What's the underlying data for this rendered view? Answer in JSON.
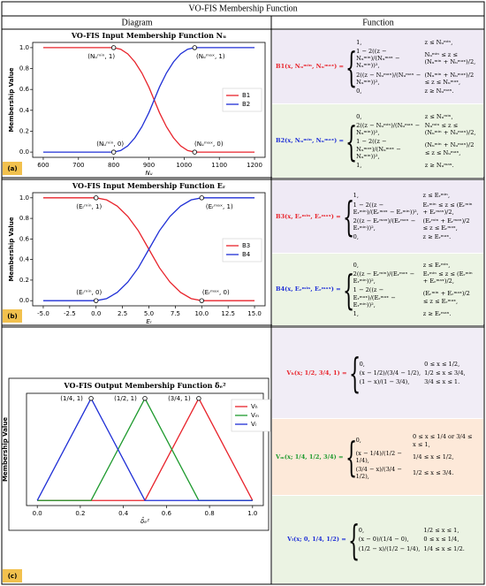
{
  "title": "VO-FIS Membership Function",
  "headers": [
    "Diagram",
    "Function"
  ],
  "panels": [
    "(a)",
    "(b)",
    "(c)"
  ],
  "chart_data": [
    {
      "type": "line",
      "title": "VO-FIS Input Membership Function Nᵤ",
      "xlabel": "Nᵤ",
      "ylabel": "Membership Value",
      "x": [
        600,
        800,
        820,
        840,
        860,
        880,
        900,
        915,
        930,
        950,
        970,
        990,
        1010,
        1030,
        1200
      ],
      "series": [
        {
          "name": "B1",
          "color": "#e8232b",
          "values": [
            1,
            1,
            0.985,
            0.94,
            0.864,
            0.758,
            0.622,
            0.5,
            0.378,
            0.242,
            0.136,
            0.06,
            0.015,
            0,
            0
          ]
        },
        {
          "name": "B2",
          "color": "#1f2fd6",
          "values": [
            0,
            0,
            0.015,
            0.06,
            0.136,
            0.242,
            0.378,
            0.5,
            0.622,
            0.758,
            0.864,
            0.94,
            0.985,
            1,
            1
          ]
        }
      ],
      "xlim": [
        570,
        1230
      ],
      "ylim": [
        -0.05,
        1.05
      ],
      "xticks": [
        600,
        700,
        800,
        900,
        1000,
        1100,
        1200
      ],
      "yticks": [
        {
          "value": 0,
          "label": "0.0"
        },
        0.2,
        0.4,
        0.6,
        0.8,
        {
          "value": 1,
          "label": "1.0"
        }
      ],
      "annotations": [
        {
          "text": "(Nᵤᵐⁱⁿ, 1)",
          "x": 800,
          "y": 1
        },
        {
          "text": "(Nᵤᵐᵃˣ, 1)",
          "x": 1030,
          "y": 1
        },
        {
          "text": "(Nᵤᵐⁱⁿ, 0)",
          "x": 800,
          "y": 0
        },
        {
          "text": "(Nᵤᵐᵃˣ, 0)",
          "x": 1030,
          "y": 0
        }
      ],
      "legend": "center right",
      "grid": false
    },
    {
      "type": "line",
      "title": "VO-FIS Input Membership Function Eᵣ",
      "xlabel": "Eᵣ",
      "ylabel": "Membership Value",
      "x": [
        -5,
        0,
        1,
        2,
        3,
        4,
        5,
        6,
        7,
        8,
        9,
        10,
        15
      ],
      "series": [
        {
          "name": "B3",
          "color": "#e8232b",
          "values": [
            1,
            1,
            0.98,
            0.92,
            0.82,
            0.68,
            0.5,
            0.32,
            0.18,
            0.08,
            0.02,
            0,
            0
          ]
        },
        {
          "name": "B4",
          "color": "#1f2fd6",
          "values": [
            0,
            0,
            0.02,
            0.08,
            0.18,
            0.32,
            0.5,
            0.68,
            0.82,
            0.92,
            0.98,
            1,
            1
          ]
        }
      ],
      "xlim": [
        -6,
        16
      ],
      "ylim": [
        -0.05,
        1.05
      ],
      "xticks": [
        {
          "value": -5,
          "label": "-5.0"
        },
        -2.5,
        {
          "value": 0,
          "label": "0.0"
        },
        2.5,
        {
          "value": 5,
          "label": "5.0"
        },
        7.5,
        {
          "value": 10,
          "label": "10.0"
        },
        12.5,
        {
          "value": 15,
          "label": "15.0"
        }
      ],
      "yticks": [
        {
          "value": 0,
          "label": "0.0"
        },
        0.2,
        0.4,
        0.6,
        0.8,
        {
          "value": 1,
          "label": "1.0"
        }
      ],
      "annotations": [
        {
          "text": "(Eᵣᵐⁱⁿ, 1)",
          "x": 0,
          "y": 1
        },
        {
          "text": "(Eᵣᵐᵃˣ, 1)",
          "x": 10,
          "y": 1
        },
        {
          "text": "(Eᵣᵐⁱⁿ, 0)",
          "x": 0,
          "y": 0
        },
        {
          "text": "(Eᵣᵐᵃˣ, 0)",
          "x": 10,
          "y": 0
        }
      ],
      "legend": "center right",
      "grid": false
    },
    {
      "type": "line",
      "title": "VO-FIS Output Membership Function δ̂ₑ²",
      "xlabel": "δ̂ₑ²",
      "ylabel": "Membership Value",
      "x": [
        0,
        0.25,
        0.5,
        0.75,
        1
      ],
      "series": [
        {
          "name": "Vₕ",
          "color": "#e8232b",
          "values": [
            0,
            0,
            0,
            1,
            0
          ]
        },
        {
          "name": "Vₘ",
          "color": "#1e9a2e",
          "values": [
            0,
            0,
            1,
            0,
            0
          ]
        },
        {
          "name": "Vₗ",
          "color": "#1f2fd6",
          "values": [
            0,
            1,
            0,
            0,
            0
          ]
        }
      ],
      "xlim": [
        -0.05,
        1.05
      ],
      "ylim": [
        -0.05,
        1.05
      ],
      "xticks": [
        {
          "value": 0,
          "label": "0.0"
        },
        0.2,
        0.4,
        0.6,
        0.8,
        {
          "value": 1,
          "label": "1.0"
        }
      ],
      "annotations": [
        {
          "text": "(1/4, 1)",
          "x": 0.25,
          "y": 1
        },
        {
          "text": "(1/2, 1)",
          "x": 0.5,
          "y": 1
        },
        {
          "text": "(3/4, 1)",
          "x": 0.75,
          "y": 1
        }
      ],
      "legend": "upper right",
      "grid": false
    }
  ],
  "functions": [
    {
      "label": "B1(x, Nᵤᵐⁱⁿ, Nᵤᵐᵃˣ) =",
      "color": "#e8232b",
      "cases": [
        [
          "1,",
          "z ≤ Nᵤᵐⁱⁿ,"
        ],
        [
          "1 − 2((z − Nᵤᵐⁱⁿ)/(Nᵤᵐᵃˣ − Nᵤᵐⁱⁿ))²,",
          "Nᵤᵐⁱⁿ ≤ z ≤ (Nᵤᵐⁱⁿ + Nᵤᵐᵃˣ)/2,"
        ],
        [
          "2((z − Nᵤᵐᵃˣ)/(Nᵤᵐᵃˣ − Nᵤᵐⁱⁿ))²,",
          "(Nᵤᵐⁱⁿ + Nᵤᵐᵃˣ)/2 ≤ z ≤ Nᵤᵐᵃˣ,"
        ],
        [
          "0,",
          "z ≥ Nᵤᵐᵃˣ."
        ]
      ]
    },
    {
      "label": "B2(x, Nᵤᵐⁱⁿ, Nᵤᵐᵃˣ) =",
      "color": "#1f2fd6",
      "cases": [
        [
          "0,",
          "z ≤ Nᵤᵐⁱⁿ,"
        ],
        [
          "2((z − Nᵤᵐⁱⁿ)/(Nᵤᵐᵃˣ − Nᵤᵐⁱⁿ))²,",
          "Nᵤᵐⁱⁿ ≤ z ≤ (Nᵤᵐⁱⁿ + Nᵤᵐᵃˣ)/2,"
        ],
        [
          "1 − 2((z − Nᵤᵐᵃˣ)/(Nᵤᵐᵃˣ − Nᵤᵐⁱⁿ))²,",
          "(Nᵤᵐⁱⁿ + Nᵤᵐᵃˣ)/2 ≤ z ≤ Nᵤᵐᵃˣ,"
        ],
        [
          "1,",
          "z ≥ Nᵤᵐᵃˣ."
        ]
      ]
    },
    {
      "label": "B3(x, Eᵣᵐⁱⁿ, Eᵣᵐᵃˣ) =",
      "color": "#e8232b",
      "cases": [
        [
          "1,",
          "z ≤ Eᵣᵐⁱⁿ,"
        ],
        [
          "1 − 2((z − Eᵣᵐⁱⁿ)/(Eᵣᵐᵃˣ − Eᵣᵐⁱⁿ))²,",
          "Eᵣᵐⁱⁿ ≤ z ≤ (Eᵣᵐⁱⁿ + Eᵣᵐᵃˣ)/2,"
        ],
        [
          "2((z − Eᵣᵐᵃˣ)/(Eᵣᵐᵃˣ − Eᵣᵐⁱⁿ))²,",
          "(Eᵣᵐⁱⁿ + Eᵣᵐᵃˣ)/2 ≤ z ≤ Eᵣᵐᵃˣ,"
        ],
        [
          "0,",
          "z ≥ Eᵣᵐᵃˣ."
        ]
      ]
    },
    {
      "label": "B4(x, Eᵣᵐⁱⁿ, Eᵣᵐᵃˣ) =",
      "color": "#1f2fd6",
      "cases": [
        [
          "0,",
          "z ≤ Eᵣᵐⁱⁿ,"
        ],
        [
          "2((z − Eᵣᵐⁱⁿ)/(Eᵣᵐᵃˣ − Eᵣᵐⁱⁿ))²,",
          "Eᵣᵐⁱⁿ ≤ z ≤ (Eᵣᵐⁱⁿ + Eᵣᵐᵃˣ)/2,"
        ],
        [
          "1 − 2((z − Eᵣᵐᵃˣ)/(Eᵣᵐᵃˣ − Eᵣᵐⁱⁿ))²,",
          "(Eᵣᵐⁱⁿ + Eᵣᵐᵃˣ)/2 ≤ z ≤ Eᵣᵐᵃˣ,"
        ],
        [
          "1,",
          "z ≥ Eᵣᵐᵃˣ."
        ]
      ]
    },
    {
      "label": "Vₕ(x; 1/2, 3/4, 1) =",
      "color": "#e8232b",
      "cases": [
        [
          "0,",
          "0 ≤ x ≤ 1/2,"
        ],
        [
          "(x − 1/2)/(3/4 − 1/2),",
          "1/2 ≤ x ≤ 3/4,"
        ],
        [
          "(1 − x)/(1 − 3/4),",
          "3/4 ≤ x ≤ 1."
        ]
      ]
    },
    {
      "label": "Vₘ(x; 1/4, 1/2, 3/4) =",
      "color": "#1e9a2e",
      "cases": [
        [
          "0,",
          "0 ≤ x ≤ 1/4 or 3/4 ≤ x ≤ 1,"
        ],
        [
          "(x − 1/4)/(1/2 − 1/4),",
          "1/4 ≤ x ≤ 1/2,"
        ],
        [
          "(3/4 − x)/(3/4 − 1/2),",
          "1/2 ≤ x ≤ 3/4."
        ]
      ]
    },
    {
      "label": "Vₗ(x; 0, 1/4, 1/2) =",
      "color": "#1f2fd6",
      "cases": [
        [
          "0,",
          "1/2 ≤ x ≤ 1,"
        ],
        [
          "(x − 0)/(1/4 − 0),",
          "0 ≤ x ≤ 1/4,"
        ],
        [
          "(1/2 − x)/(1/2 − 1/4),",
          "1/4 ≤ x ≤ 1/2."
        ]
      ]
    }
  ]
}
